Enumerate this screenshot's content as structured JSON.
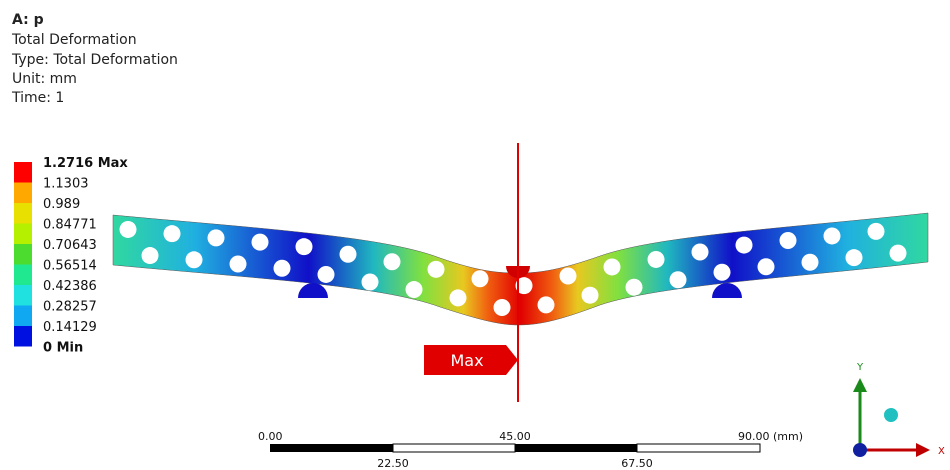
{
  "header": {
    "lines": [
      "A: p",
      "Total Deformation",
      "Type: Total Deformation",
      "Unit: mm",
      "Time: 1"
    ]
  },
  "legend": {
    "labels": [
      "1.2716 Max",
      "1.1303",
      "0.989",
      "0.84771",
      "0.70643",
      "0.56514",
      "0.42386",
      "0.28257",
      "0.14129",
      "0 Min"
    ],
    "colors": [
      "#ff0000",
      "#ffa800",
      "#e8e000",
      "#b4f000",
      "#4cdc30",
      "#20e890",
      "#20e0e0",
      "#10a8f0",
      "#0010e0"
    ]
  },
  "probe": {
    "label": "Max"
  },
  "scale_bar": {
    "top_labels": [
      "0.00",
      "45.00",
      "90.00 (mm)"
    ],
    "bottom_labels": [
      "22.50",
      "67.50"
    ]
  },
  "triad": {
    "x_label": "X",
    "y_label": "Y"
  }
}
